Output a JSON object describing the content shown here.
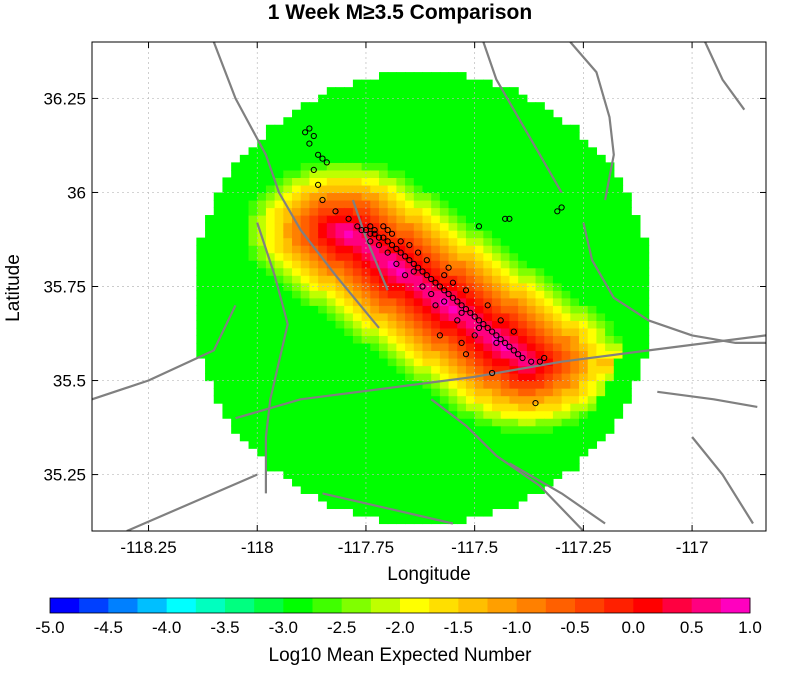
{
  "chart_data": {
    "type": "heatmap",
    "title": "1 Week M≥3.5 Comparison",
    "xlabel": "Longitude",
    "ylabel": "Latitude",
    "xlim": [
      -118.38,
      -116.83
    ],
    "ylim": [
      35.1,
      36.4
    ],
    "xticks": [
      -118.25,
      -118,
      -117.75,
      -117.5,
      -117.25,
      -117
    ],
    "xtick_labels": [
      "-118.25",
      "-118",
      "-117.75",
      "-117.5",
      "-117.25",
      "-117"
    ],
    "yticks": [
      35.25,
      35.5,
      35.75,
      36,
      36.25
    ],
    "ytick_labels": [
      "35.25",
      "35.5",
      "35.75",
      "36",
      "36.25"
    ],
    "grid": true,
    "colorbar": {
      "label": "Log10 Mean Expected Number",
      "range": [
        -5.0,
        1.0
      ],
      "ticks": [
        "-5.0",
        "-4.5",
        "-4.0",
        "-3.5",
        "-3.0",
        "-2.5",
        "-2.0",
        "-1.5",
        "-1.0",
        "-0.5",
        "0.0",
        "0.5",
        "1.0"
      ],
      "colors": [
        "#0000ff",
        "#0040ff",
        "#0080ff",
        "#00bfff",
        "#00ffff",
        "#00ffbf",
        "#00ff80",
        "#00ff40",
        "#00ff00",
        "#40ff00",
        "#80ff00",
        "#bfff00",
        "#ffff00",
        "#ffdf00",
        "#ffbf00",
        "#ff9f00",
        "#ff8000",
        "#ff6000",
        "#ff4000",
        "#ff2000",
        "#ff0000",
        "#ff0040",
        "#ff0080",
        "#ff00bf"
      ]
    },
    "forecast_field": {
      "region_center": [
        -117.62,
        35.72
      ],
      "region_semi_axes_deg": [
        0.53,
        0.6
      ],
      "fault_trend": {
        "from": [
          -117.8,
          35.9
        ],
        "to": [
          -117.38,
          35.55
        ]
      },
      "background_log10": -3.0,
      "peak_log10": 0.8,
      "secondary_fault": {
        "from": [
          -117.42,
          35.5
        ],
        "to": [
          -116.83,
          35.62
        ],
        "log10": -1.3
      }
    },
    "epicenters": {
      "marker": "open-circle",
      "points": [
        [
          -117.88,
          36.17
        ],
        [
          -117.89,
          36.16
        ],
        [
          -117.87,
          36.15
        ],
        [
          -117.88,
          36.13
        ],
        [
          -117.86,
          36.1
        ],
        [
          -117.85,
          36.09
        ],
        [
          -117.84,
          36.08
        ],
        [
          -117.87,
          36.06
        ],
        [
          -117.86,
          36.02
        ],
        [
          -117.85,
          35.98
        ],
        [
          -117.82,
          35.95
        ],
        [
          -117.79,
          35.93
        ],
        [
          -117.77,
          35.91
        ],
        [
          -117.76,
          35.9
        ],
        [
          -117.75,
          35.9
        ],
        [
          -117.74,
          35.89
        ],
        [
          -117.73,
          35.89
        ],
        [
          -117.72,
          35.88
        ],
        [
          -117.71,
          35.88
        ],
        [
          -117.7,
          35.87
        ],
        [
          -117.74,
          35.87
        ],
        [
          -117.72,
          35.86
        ],
        [
          -117.69,
          35.86
        ],
        [
          -117.68,
          35.85
        ],
        [
          -117.7,
          35.84
        ],
        [
          -117.67,
          35.84
        ],
        [
          -117.66,
          35.83
        ],
        [
          -117.65,
          35.82
        ],
        [
          -117.68,
          35.81
        ],
        [
          -117.64,
          35.81
        ],
        [
          -117.63,
          35.8
        ],
        [
          -117.62,
          35.79
        ],
        [
          -117.61,
          35.78
        ],
        [
          -117.6,
          35.77
        ],
        [
          -117.59,
          35.76
        ],
        [
          -117.58,
          35.75
        ],
        [
          -117.57,
          35.74
        ],
        [
          -117.56,
          35.73
        ],
        [
          -117.55,
          35.72
        ],
        [
          -117.54,
          35.71
        ],
        [
          -117.53,
          35.7
        ],
        [
          -117.52,
          35.69
        ],
        [
          -117.51,
          35.68
        ],
        [
          -117.5,
          35.67
        ],
        [
          -117.49,
          35.66
        ],
        [
          -117.48,
          35.65
        ],
        [
          -117.47,
          35.64
        ],
        [
          -117.46,
          35.63
        ],
        [
          -117.45,
          35.62
        ],
        [
          -117.44,
          35.61
        ],
        [
          -117.43,
          35.6
        ],
        [
          -117.42,
          35.59
        ],
        [
          -117.41,
          35.58
        ],
        [
          -117.4,
          35.57
        ],
        [
          -117.39,
          35.56
        ],
        [
          -117.6,
          35.73
        ],
        [
          -117.57,
          35.71
        ],
        [
          -117.53,
          35.68
        ],
        [
          -117.49,
          35.64
        ],
        [
          -117.45,
          35.6
        ],
        [
          -117.62,
          35.75
        ],
        [
          -117.55,
          35.76
        ],
        [
          -117.52,
          35.74
        ],
        [
          -117.47,
          35.7
        ],
        [
          -117.44,
          35.66
        ],
        [
          -117.41,
          35.63
        ],
        [
          -117.66,
          35.78
        ],
        [
          -117.59,
          35.7
        ],
        [
          -117.54,
          35.66
        ],
        [
          -117.5,
          35.62
        ],
        [
          -117.58,
          35.62
        ],
        [
          -117.53,
          35.6
        ],
        [
          -117.52,
          35.57
        ],
        [
          -117.46,
          35.52
        ],
        [
          -117.37,
          35.55
        ],
        [
          -117.35,
          35.55
        ],
        [
          -117.49,
          35.91
        ],
        [
          -117.31,
          35.95
        ],
        [
          -117.36,
          35.44
        ],
        [
          -117.42,
          35.93
        ],
        [
          -117.43,
          35.93
        ],
        [
          -117.3,
          35.96
        ],
        [
          -117.34,
          35.56
        ],
        [
          -117.71,
          35.91
        ],
        [
          -117.73,
          35.9
        ],
        [
          -117.74,
          35.91
        ],
        [
          -117.7,
          35.9
        ],
        [
          -117.69,
          35.89
        ],
        [
          -117.67,
          35.87
        ],
        [
          -117.65,
          35.86
        ],
        [
          -117.63,
          35.84
        ],
        [
          -117.61,
          35.82
        ],
        [
          -117.64,
          35.79
        ],
        [
          -117.56,
          35.8
        ],
        [
          -117.57,
          35.78
        ]
      ]
    },
    "fault_traces": [
      [
        [
          -118.1,
          36.4
        ],
        [
          -118.05,
          36.25
        ],
        [
          -117.98,
          36.1
        ],
        [
          -117.95,
          36.0
        ],
        [
          -117.9,
          35.9
        ],
        [
          -117.82,
          35.78
        ],
        [
          -117.72,
          35.64
        ]
      ],
      [
        [
          -118.0,
          35.92
        ],
        [
          -117.96,
          35.78
        ],
        [
          -117.93,
          35.65
        ],
        [
          -117.95,
          35.55
        ],
        [
          -117.97,
          35.45
        ],
        [
          -117.98,
          35.35
        ],
        [
          -117.98,
          35.2
        ]
      ],
      [
        [
          -117.78,
          35.98
        ],
        [
          -117.75,
          35.88
        ],
        [
          -117.7,
          35.74
        ]
      ],
      [
        [
          -117.48,
          36.4
        ],
        [
          -117.45,
          36.3
        ],
        [
          -117.4,
          36.2
        ],
        [
          -117.35,
          36.1
        ],
        [
          -117.3,
          36.0
        ]
      ],
      [
        [
          -117.28,
          36.4
        ],
        [
          -117.22,
          36.32
        ],
        [
          -117.19,
          36.2
        ],
        [
          -117.18,
          36.1
        ],
        [
          -117.2,
          35.98
        ]
      ],
      [
        [
          -117.25,
          35.92
        ],
        [
          -117.23,
          35.82
        ],
        [
          -117.18,
          35.72
        ],
        [
          -117.1,
          35.66
        ],
        [
          -117.0,
          35.62
        ],
        [
          -116.9,
          35.6
        ],
        [
          -116.83,
          35.6
        ]
      ],
      [
        [
          -118.05,
          35.4
        ],
        [
          -117.9,
          35.45
        ],
        [
          -117.7,
          35.48
        ],
        [
          -117.5,
          35.51
        ],
        [
          -117.3,
          35.55
        ],
        [
          -117.1,
          35.58
        ],
        [
          -116.83,
          35.62
        ]
      ],
      [
        [
          -118.38,
          35.45
        ],
        [
          -118.25,
          35.5
        ],
        [
          -118.1,
          35.58
        ],
        [
          -118.05,
          35.7
        ]
      ],
      [
        [
          -117.6,
          35.45
        ],
        [
          -117.52,
          35.38
        ],
        [
          -117.45,
          35.3
        ],
        [
          -117.35,
          35.22
        ],
        [
          -117.25,
          35.1
        ]
      ],
      [
        [
          -117.85,
          35.2
        ],
        [
          -117.7,
          35.16
        ],
        [
          -117.55,
          35.12
        ]
      ],
      [
        [
          -118.3,
          35.1
        ],
        [
          -118.1,
          35.2
        ],
        [
          -118.0,
          35.25
        ]
      ],
      [
        [
          -117.08,
          35.47
        ],
        [
          -116.95,
          35.45
        ],
        [
          -116.85,
          35.43
        ]
      ],
      [
        [
          -117.0,
          35.35
        ],
        [
          -116.93,
          35.25
        ],
        [
          -116.86,
          35.12
        ]
      ],
      [
        [
          -116.97,
          36.4
        ],
        [
          -116.93,
          36.3
        ],
        [
          -116.88,
          36.22
        ]
      ],
      [
        [
          -117.42,
          35.28
        ],
        [
          -117.3,
          35.2
        ],
        [
          -117.2,
          35.12
        ]
      ]
    ]
  }
}
